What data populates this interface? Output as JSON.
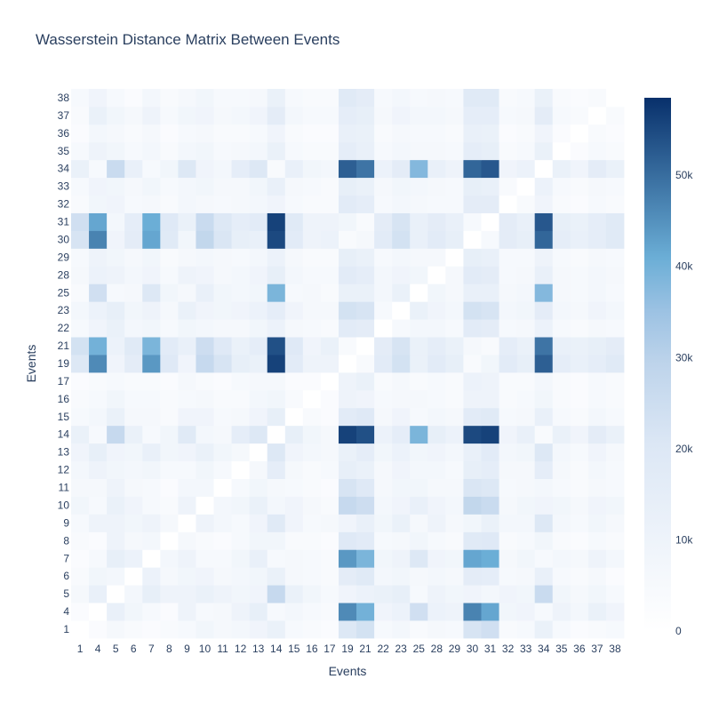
{
  "chart_data": {
    "type": "heatmap",
    "title": "Wasserstein Distance Matrix Between Events",
    "xlabel": "Events",
    "ylabel": "Events",
    "labels": [
      "1",
      "4",
      "5",
      "6",
      "7",
      "8",
      "9",
      "10",
      "11",
      "12",
      "13",
      "14",
      "15",
      "16",
      "17",
      "19",
      "21",
      "22",
      "23",
      "25",
      "28",
      "29",
      "30",
      "31",
      "32",
      "33",
      "34",
      "35",
      "36",
      "37",
      "38"
    ],
    "colorscale": "Blues",
    "zmin": 0,
    "zmax": 58500,
    "colorbar_ticks": [
      {
        "value": 0,
        "label": "0"
      },
      {
        "value": 10000,
        "label": "10k"
      },
      {
        "value": 20000,
        "label": "20k"
      },
      {
        "value": 30000,
        "label": "30k"
      },
      {
        "value": 40000,
        "label": "40k"
      },
      {
        "value": 50000,
        "label": "50k"
      }
    ],
    "values": [
      [
        0,
        3000,
        6000,
        4000,
        3000,
        4000,
        5000,
        8000,
        6000,
        7000,
        9000,
        12000,
        5000,
        4000,
        3000,
        20000,
        23000,
        5000,
        7000,
        4000,
        6000,
        5000,
        22000,
        24000,
        4000,
        5000,
        12000,
        5000,
        3000,
        4000,
        5000
      ],
      [
        3000,
        0,
        13000,
        8000,
        5000,
        3000,
        10000,
        5000,
        6000,
        10000,
        14000,
        5000,
        7000,
        5000,
        4000,
        46000,
        40000,
        9000,
        11000,
        24000,
        11000,
        10000,
        47000,
        42000,
        8000,
        9000,
        5000,
        10000,
        7000,
        12000,
        9000
      ],
      [
        6000,
        13000,
        0,
        7000,
        14000,
        10000,
        10000,
        12000,
        10000,
        8000,
        9000,
        27000,
        12000,
        8000,
        5000,
        9000,
        11000,
        12000,
        14000,
        5000,
        10000,
        8000,
        9000,
        7000,
        9000,
        8000,
        26000,
        8000,
        6000,
        8000,
        5000
      ],
      [
        4000,
        8000,
        7000,
        0,
        11000,
        6000,
        8000,
        9000,
        6000,
        7000,
        8000,
        12000,
        6000,
        5000,
        4000,
        16000,
        18000,
        7000,
        8000,
        6000,
        7000,
        6000,
        16000,
        15000,
        5000,
        6000,
        13000,
        5000,
        4000,
        6000,
        3000
      ],
      [
        3000,
        5000,
        14000,
        11000,
        0,
        7000,
        10000,
        5000,
        5000,
        8000,
        13000,
        5000,
        6000,
        5000,
        4000,
        44000,
        39000,
        8000,
        10000,
        20000,
        9000,
        8000,
        42000,
        41000,
        6000,
        8000,
        5000,
        7000,
        6000,
        10000,
        7000
      ],
      [
        4000,
        3000,
        10000,
        6000,
        7000,
        0,
        6000,
        4000,
        3000,
        5000,
        8000,
        8000,
        4000,
        4000,
        3000,
        19000,
        17000,
        5000,
        6000,
        8000,
        5000,
        4000,
        18000,
        19000,
        4000,
        5000,
        8000,
        4000,
        3000,
        5000,
        4000
      ],
      [
        5000,
        10000,
        10000,
        8000,
        10000,
        6000,
        0,
        10000,
        7000,
        5000,
        9000,
        18000,
        9000,
        5000,
        6000,
        9000,
        13000,
        8000,
        12000,
        6000,
        10000,
        6000,
        8000,
        12000,
        7000,
        7000,
        20000,
        7000,
        5000,
        8000,
        6000
      ],
      [
        8000,
        5000,
        12000,
        9000,
        5000,
        4000,
        10000,
        0,
        7000,
        8000,
        12000,
        7000,
        9000,
        6000,
        4000,
        27000,
        25000,
        7000,
        9000,
        13000,
        9000,
        7000,
        28000,
        26000,
        6000,
        8000,
        9000,
        8000,
        6000,
        9000,
        8000
      ],
      [
        6000,
        6000,
        10000,
        6000,
        5000,
        3000,
        7000,
        7000,
        0,
        5000,
        8000,
        6000,
        5000,
        4000,
        3000,
        22000,
        19000,
        6000,
        8000,
        8000,
        6000,
        6000,
        21000,
        20000,
        5000,
        6000,
        7000,
        5000,
        4000,
        6000,
        5000
      ],
      [
        7000,
        10000,
        8000,
        7000,
        8000,
        5000,
        5000,
        8000,
        5000,
        0,
        6000,
        15000,
        6000,
        4000,
        5000,
        14000,
        12000,
        6000,
        9000,
        7000,
        7000,
        5000,
        14000,
        15000,
        6000,
        6000,
        15000,
        6000,
        4000,
        7000,
        5000
      ],
      [
        9000,
        14000,
        9000,
        8000,
        13000,
        8000,
        9000,
        12000,
        8000,
        6000,
        0,
        20000,
        9000,
        7000,
        6000,
        12000,
        15000,
        8000,
        11000,
        8000,
        9000,
        7000,
        13000,
        17000,
        7000,
        8000,
        20000,
        7000,
        5000,
        9000,
        6000
      ],
      [
        12000,
        5000,
        27000,
        12000,
        5000,
        8000,
        18000,
        7000,
        6000,
        15000,
        20000,
        0,
        14000,
        8000,
        6000,
        56000,
        54000,
        11000,
        15000,
        39000,
        14000,
        11000,
        55000,
        56000,
        9000,
        13000,
        4000,
        12000,
        9000,
        16000,
        12000
      ],
      [
        5000,
        7000,
        12000,
        6000,
        6000,
        4000,
        9000,
        9000,
        5000,
        6000,
        9000,
        14000,
        0,
        4000,
        3000,
        17000,
        19000,
        6000,
        9000,
        5000,
        7000,
        6000,
        17000,
        18000,
        5000,
        6000,
        13000,
        5000,
        4000,
        7000,
        5000
      ],
      [
        4000,
        5000,
        8000,
        5000,
        5000,
        4000,
        5000,
        6000,
        4000,
        4000,
        7000,
        8000,
        4000,
        0,
        3000,
        10000,
        9000,
        5000,
        6000,
        6000,
        5000,
        4000,
        10000,
        10000,
        4000,
        5000,
        8000,
        4000,
        3000,
        5000,
        4000
      ],
      [
        3000,
        4000,
        5000,
        4000,
        4000,
        3000,
        6000,
        4000,
        3000,
        5000,
        6000,
        6000,
        3000,
        3000,
        0,
        10000,
        12000,
        4000,
        6000,
        4000,
        5000,
        4000,
        11000,
        10000,
        4000,
        4000,
        7000,
        4000,
        3000,
        5000,
        4000
      ],
      [
        20000,
        46000,
        9000,
        16000,
        44000,
        19000,
        9000,
        27000,
        22000,
        14000,
        12000,
        56000,
        17000,
        10000,
        10000,
        0,
        4000,
        17000,
        23000,
        12000,
        17000,
        14000,
        4000,
        8000,
        17000,
        14000,
        52000,
        15000,
        13000,
        15000,
        18000
      ],
      [
        23000,
        40000,
        11000,
        18000,
        39000,
        17000,
        13000,
        25000,
        19000,
        12000,
        15000,
        54000,
        19000,
        9000,
        12000,
        4000,
        0,
        16000,
        22000,
        12000,
        15000,
        12000,
        6000,
        4000,
        15000,
        12000,
        49000,
        13000,
        12000,
        14000,
        16000
      ],
      [
        5000,
        9000,
        12000,
        7000,
        8000,
        5000,
        8000,
        7000,
        6000,
        6000,
        8000,
        11000,
        6000,
        5000,
        4000,
        17000,
        16000,
        0,
        5000,
        7000,
        7000,
        5000,
        17000,
        16000,
        5000,
        6000,
        11000,
        5000,
        4000,
        6000,
        5000
      ],
      [
        7000,
        11000,
        14000,
        8000,
        10000,
        6000,
        12000,
        9000,
        8000,
        9000,
        11000,
        15000,
        9000,
        6000,
        6000,
        23000,
        22000,
        5000,
        0,
        12000,
        9000,
        7000,
        23000,
        22000,
        7000,
        8000,
        16000,
        7000,
        6000,
        9000,
        7000
      ],
      [
        4000,
        24000,
        5000,
        6000,
        20000,
        8000,
        6000,
        13000,
        8000,
        7000,
        8000,
        39000,
        5000,
        6000,
        4000,
        12000,
        12000,
        7000,
        12000,
        0,
        8000,
        6000,
        13000,
        13000,
        6000,
        7000,
        38000,
        6000,
        5000,
        7000,
        5000
      ],
      [
        6000,
        11000,
        10000,
        7000,
        9000,
        5000,
        10000,
        9000,
        6000,
        7000,
        9000,
        14000,
        7000,
        5000,
        5000,
        17000,
        15000,
        7000,
        9000,
        8000,
        0,
        6000,
        17000,
        16000,
        5000,
        6000,
        13000,
        6000,
        5000,
        7000,
        6000
      ],
      [
        5000,
        10000,
        8000,
        6000,
        8000,
        4000,
        6000,
        7000,
        6000,
        5000,
        7000,
        11000,
        6000,
        4000,
        4000,
        14000,
        12000,
        5000,
        7000,
        6000,
        6000,
        0,
        14000,
        13000,
        5000,
        5000,
        10000,
        5000,
        4000,
        6000,
        5000
      ],
      [
        22000,
        47000,
        9000,
        16000,
        42000,
        18000,
        8000,
        28000,
        21000,
        14000,
        13000,
        55000,
        17000,
        10000,
        11000,
        4000,
        6000,
        17000,
        23000,
        13000,
        17000,
        14000,
        0,
        5000,
        16000,
        14000,
        51000,
        15000,
        13000,
        15000,
        18000
      ],
      [
        24000,
        42000,
        7000,
        15000,
        41000,
        19000,
        12000,
        26000,
        20000,
        15000,
        17000,
        56000,
        18000,
        10000,
        10000,
        8000,
        4000,
        16000,
        22000,
        13000,
        16000,
        13000,
        5000,
        0,
        16000,
        13000,
        53000,
        14000,
        12000,
        15000,
        18000
      ],
      [
        4000,
        8000,
        9000,
        5000,
        6000,
        4000,
        7000,
        6000,
        5000,
        6000,
        7000,
        9000,
        5000,
        4000,
        4000,
        17000,
        15000,
        5000,
        7000,
        6000,
        5000,
        5000,
        16000,
        16000,
        0,
        4000,
        9000,
        4000,
        3000,
        5000,
        4000
      ],
      [
        5000,
        9000,
        8000,
        6000,
        8000,
        5000,
        7000,
        8000,
        6000,
        6000,
        8000,
        13000,
        6000,
        5000,
        4000,
        14000,
        12000,
        6000,
        8000,
        7000,
        6000,
        5000,
        14000,
        13000,
        4000,
        0,
        11000,
        5000,
        4000,
        6000,
        5000
      ],
      [
        12000,
        5000,
        26000,
        13000,
        5000,
        8000,
        20000,
        9000,
        7000,
        15000,
        20000,
        4000,
        13000,
        8000,
        7000,
        52000,
        49000,
        11000,
        16000,
        38000,
        13000,
        10000,
        51000,
        53000,
        9000,
        11000,
        0,
        12000,
        9000,
        16000,
        12000
      ],
      [
        5000,
        10000,
        8000,
        5000,
        7000,
        4000,
        7000,
        8000,
        5000,
        6000,
        7000,
        12000,
        5000,
        4000,
        4000,
        15000,
        13000,
        5000,
        7000,
        6000,
        6000,
        5000,
        15000,
        14000,
        4000,
        5000,
        12000,
        0,
        3000,
        5000,
        4000
      ],
      [
        3000,
        7000,
        6000,
        4000,
        6000,
        3000,
        5000,
        6000,
        4000,
        4000,
        5000,
        9000,
        4000,
        3000,
        3000,
        13000,
        12000,
        4000,
        6000,
        5000,
        5000,
        4000,
        13000,
        12000,
        3000,
        4000,
        9000,
        3000,
        0,
        4000,
        3000
      ],
      [
        4000,
        12000,
        8000,
        6000,
        10000,
        5000,
        8000,
        9000,
        6000,
        7000,
        9000,
        16000,
        7000,
        5000,
        5000,
        15000,
        14000,
        6000,
        9000,
        7000,
        7000,
        6000,
        15000,
        15000,
        5000,
        6000,
        16000,
        5000,
        4000,
        0,
        4000
      ],
      [
        5000,
        9000,
        5000,
        3000,
        7000,
        4000,
        6000,
        8000,
        5000,
        5000,
        6000,
        12000,
        5000,
        4000,
        4000,
        18000,
        16000,
        5000,
        7000,
        5000,
        6000,
        5000,
        18000,
        18000,
        4000,
        5000,
        12000,
        4000,
        3000,
        4000,
        0
      ]
    ]
  }
}
